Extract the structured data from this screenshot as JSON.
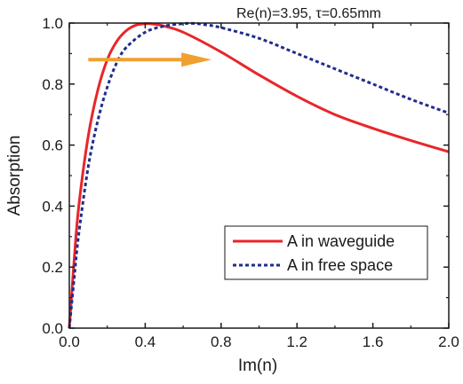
{
  "chart_data": {
    "type": "line",
    "title": "",
    "annotation": "Re(n)=3.95, τ=0.65mm",
    "xlabel": "Im(n)",
    "ylabel": "Absorption",
    "xlim": [
      0.0,
      2.0
    ],
    "ylim": [
      0.0,
      1.0
    ],
    "x_ticks": [
      "0.0",
      "0.4",
      "0.8",
      "1.2",
      "1.6",
      "2.0"
    ],
    "y_ticks": [
      "0.0",
      "0.2",
      "0.4",
      "0.6",
      "0.8",
      "1.0"
    ],
    "legend_position": "lower-right",
    "arrow": {
      "color": "#f0a030",
      "from": [
        0.1,
        0.88
      ],
      "to": [
        0.75,
        0.88
      ]
    },
    "series": [
      {
        "name": "A in waveguide",
        "style": "solid",
        "color": "#e8262a",
        "x": [
          0,
          0.025,
          0.05,
          0.1,
          0.15,
          0.2,
          0.25,
          0.3,
          0.35,
          0.4,
          0.45,
          0.5,
          0.6,
          0.8,
          1.0,
          1.2,
          1.4,
          1.6,
          1.8,
          2.0
        ],
        "y": [
          0,
          0.22,
          0.4,
          0.63,
          0.78,
          0.88,
          0.94,
          0.975,
          0.993,
          0.998,
          0.996,
          0.99,
          0.97,
          0.905,
          0.83,
          0.76,
          0.7,
          0.655,
          0.615,
          0.578
        ]
      },
      {
        "name": "A in free space",
        "style": "dashed",
        "color": "#1f2d8c",
        "x": [
          0,
          0.025,
          0.05,
          0.1,
          0.15,
          0.2,
          0.25,
          0.3,
          0.4,
          0.5,
          0.6,
          0.65,
          0.7,
          0.8,
          1.0,
          1.2,
          1.4,
          1.6,
          1.8,
          2.0
        ],
        "y": [
          0,
          0.16,
          0.31,
          0.53,
          0.68,
          0.79,
          0.87,
          0.92,
          0.97,
          0.99,
          0.998,
          0.999,
          0.996,
          0.985,
          0.95,
          0.9,
          0.85,
          0.8,
          0.75,
          0.705
        ]
      }
    ]
  }
}
